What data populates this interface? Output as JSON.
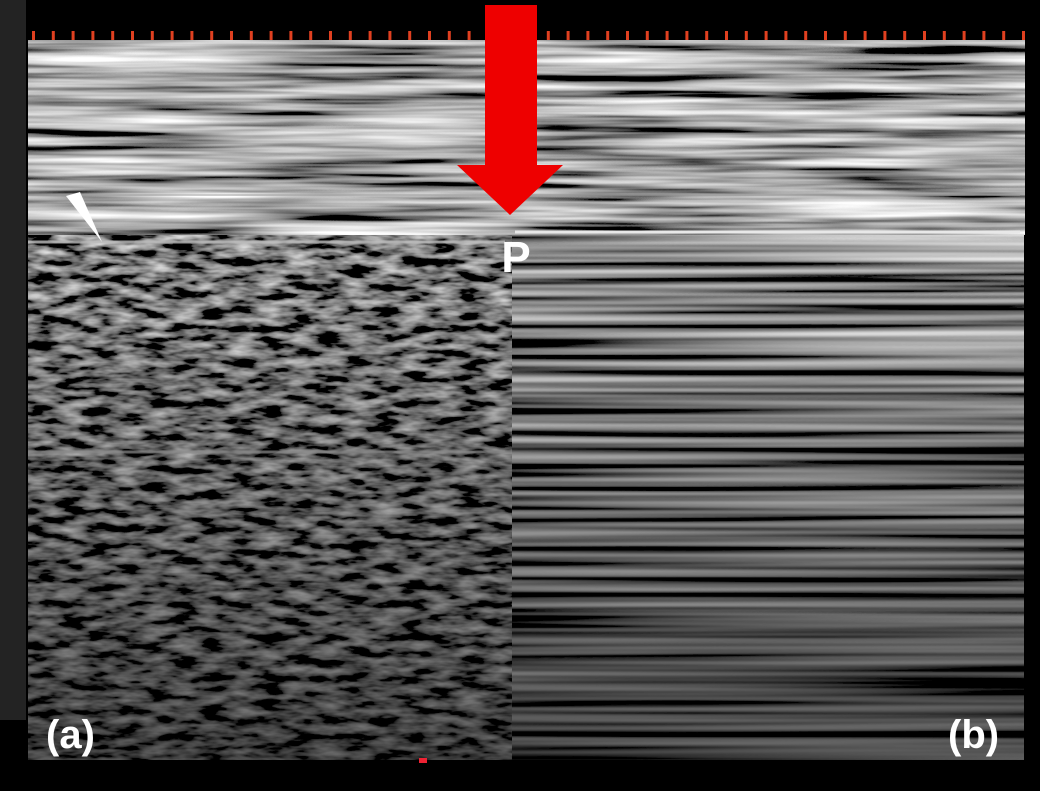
{
  "labels": {
    "point": "P",
    "left": "(a)",
    "right": "(b)"
  }
}
